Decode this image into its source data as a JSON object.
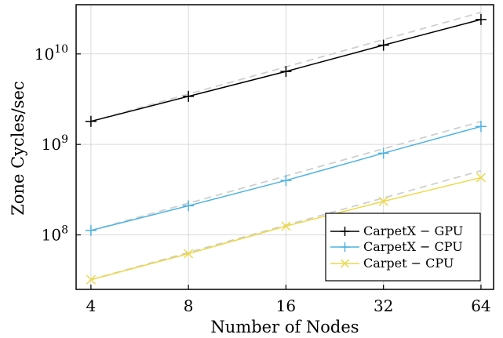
{
  "chart_data": {
    "type": "line",
    "title": "",
    "xlabel": "Number of Nodes",
    "ylabel": "Zone Cycles/sec",
    "x_scale": "log2",
    "y_scale": "log10",
    "categories": [
      "4",
      "8",
      "16",
      "32",
      "64"
    ],
    "x": [
      4,
      8,
      16,
      32,
      64
    ],
    "xlim": [
      3.6,
      70
    ],
    "ylim": [
      25000000,
      35000000000
    ],
    "y_ticks": [
      {
        "value": 100000000,
        "base": "10",
        "exp": "8"
      },
      {
        "value": 1000000000,
        "base": "10",
        "exp": "9"
      },
      {
        "value": 10000000000,
        "base": "10",
        "exp": "10"
      }
    ],
    "grid": true,
    "legend_position": "bottom-right",
    "series": [
      {
        "name": "CarpetX − GPU",
        "color": "#000000",
        "marker": "plus",
        "values": [
          1800000000,
          3400000000,
          6400000000,
          12500000000,
          24000000000
        ],
        "ideal": [
          1800000000,
          3600000000,
          7200000000,
          14400000000,
          28800000000
        ]
      },
      {
        "name": "CarpetX − CPU",
        "color": "#4fb3e0",
        "marker": "plus",
        "values": [
          112000000,
          210000000,
          400000000,
          800000000,
          1580000000
        ],
        "ideal": [
          112000000,
          224000000,
          448000000,
          896000000,
          1792000000
        ]
      },
      {
        "name": "Carpet − CPU",
        "color": "#ecd94a",
        "marker": "x",
        "values": [
          32000000,
          62000000,
          125000000,
          235000000,
          430000000
        ],
        "ideal": [
          32000000,
          64000000,
          128000000,
          256000000,
          512000000
        ]
      }
    ],
    "ideal_line_color": "#cfcfcf"
  }
}
